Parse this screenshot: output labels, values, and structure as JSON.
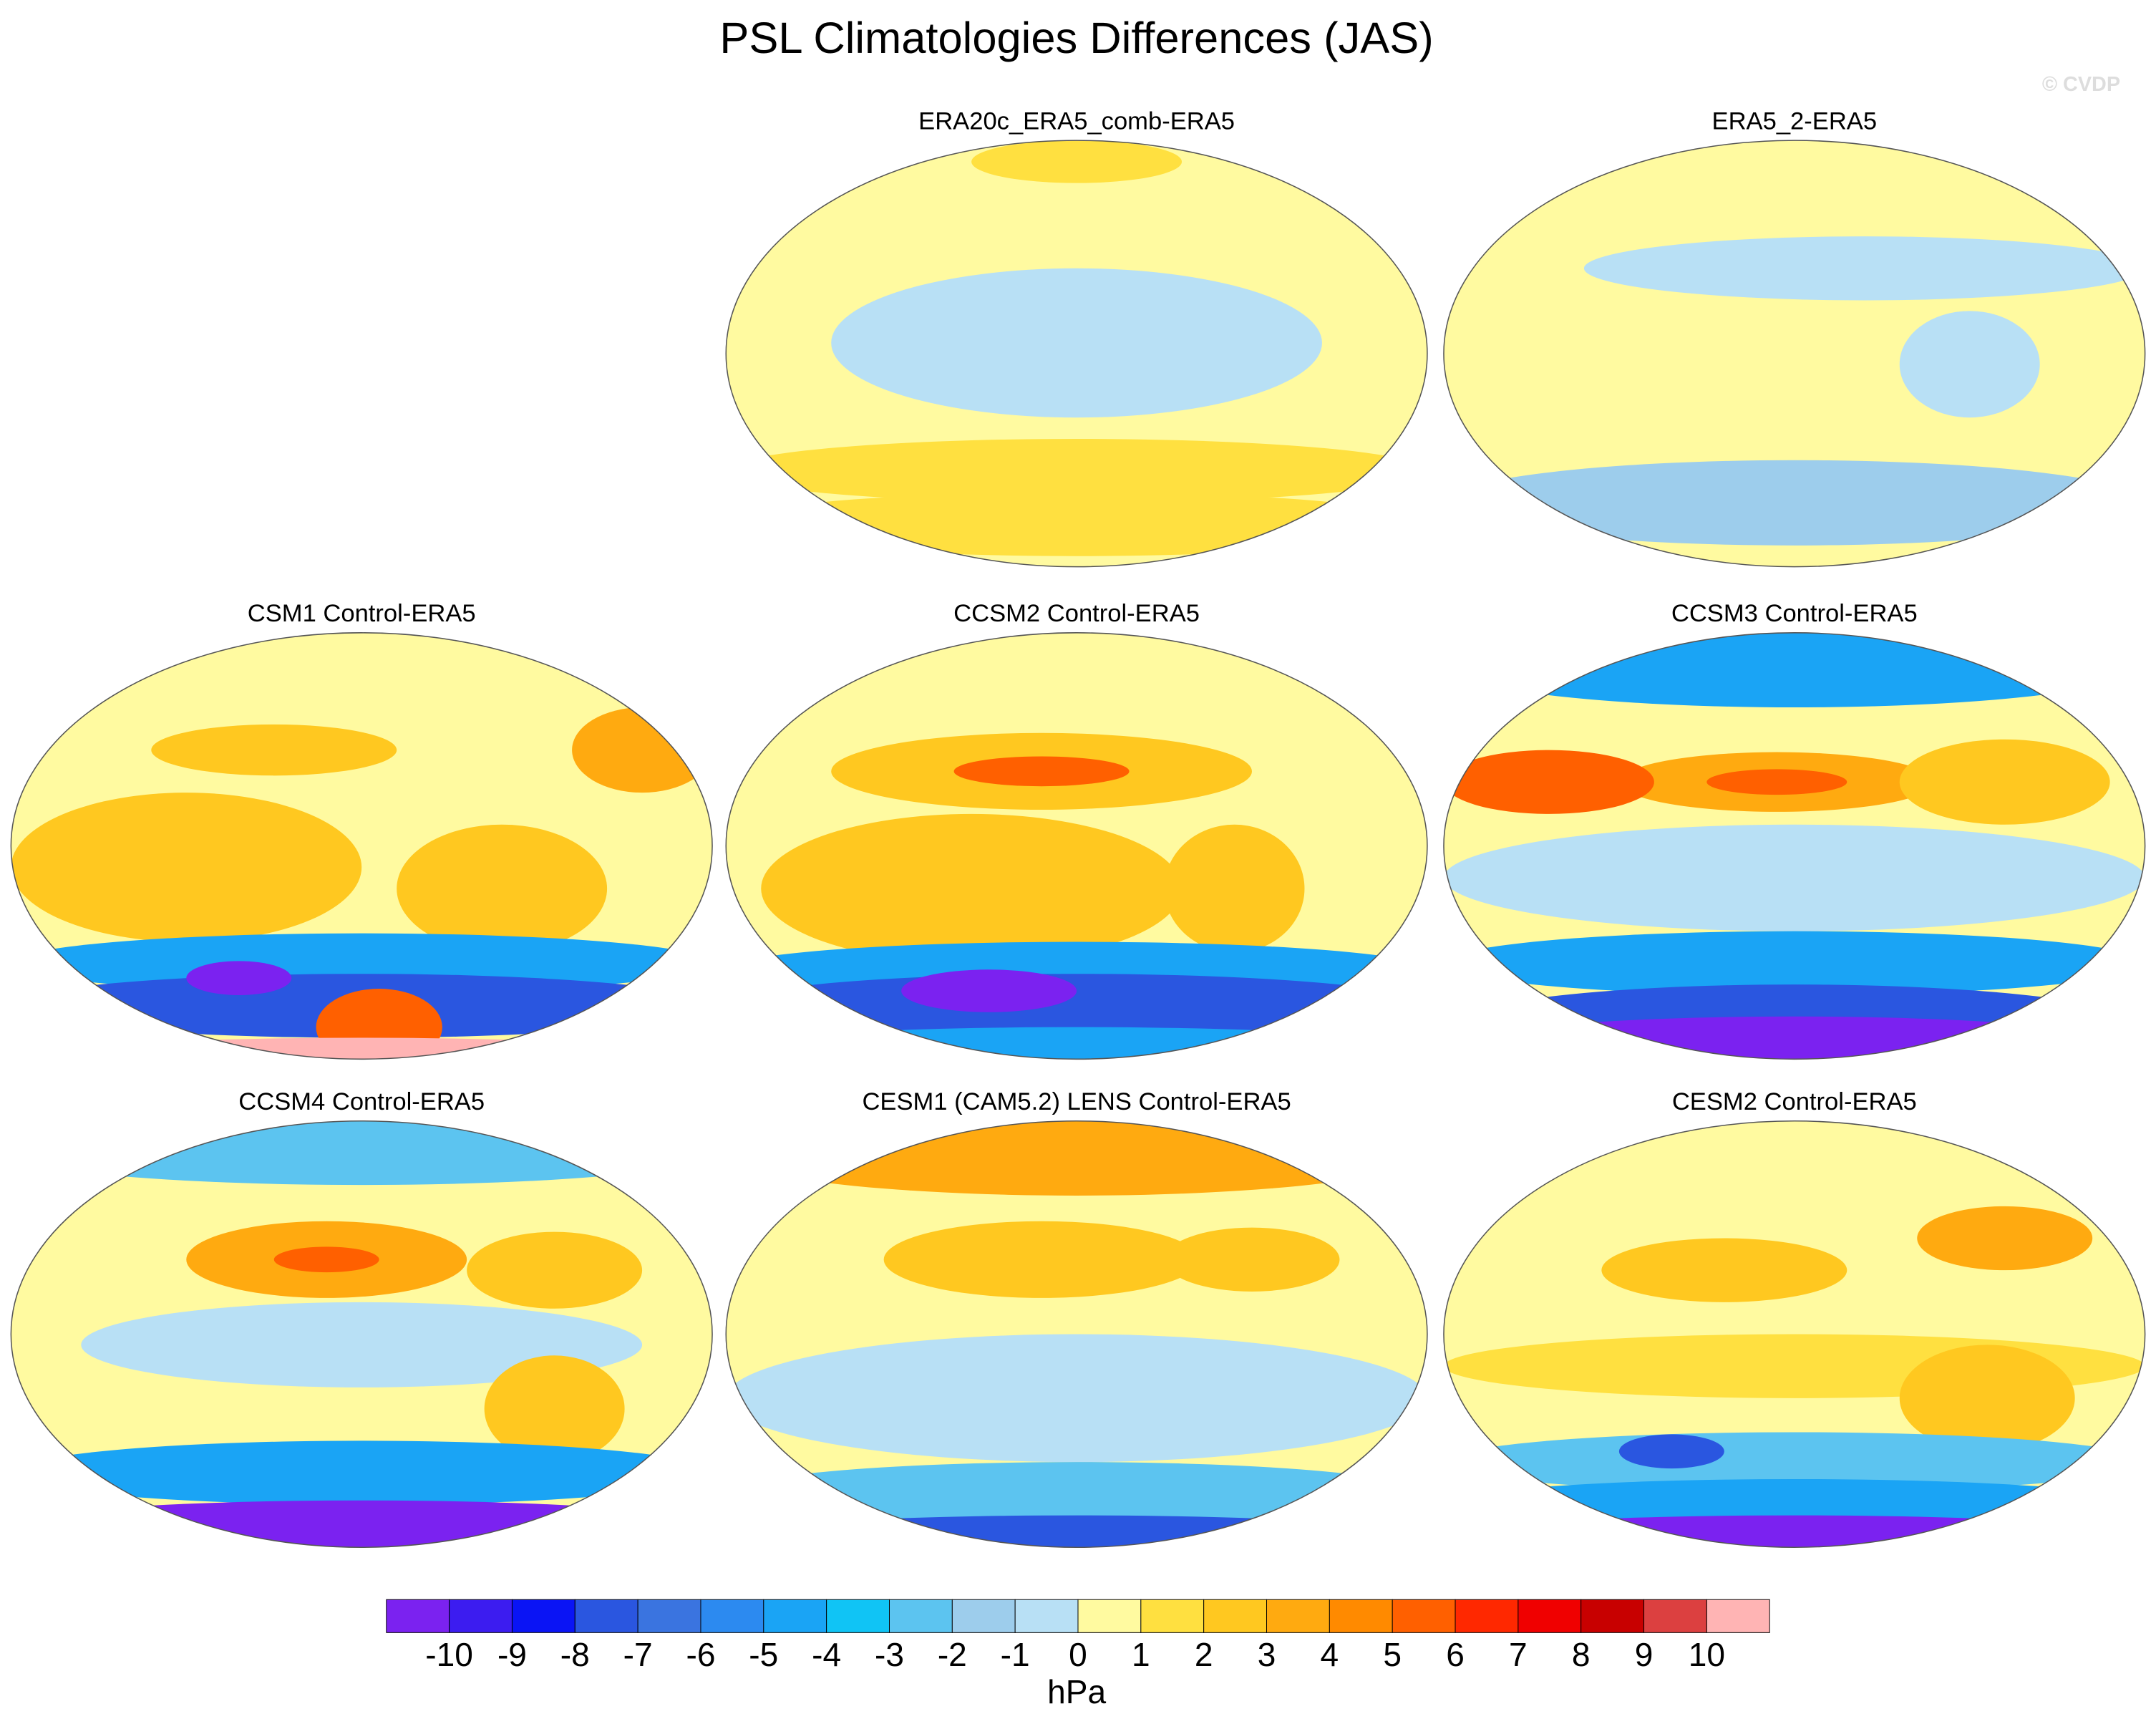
{
  "title": "PSL Climatologies Differences (JAS)",
  "watermark": "© CVDP",
  "panels": [
    {
      "title": "ERA20c_ERA5_comb-ERA5"
    },
    {
      "title": "ERA5_2-ERA5"
    },
    {
      "title": "CSM1 Control-ERA5"
    },
    {
      "title": "CCSM2 Control-ERA5"
    },
    {
      "title": "CCSM3 Control-ERA5"
    },
    {
      "title": "CCSM4 Control-ERA5"
    },
    {
      "title": "CESM1 (CAM5.2) LENS Control-ERA5"
    },
    {
      "title": "CESM2 Control-ERA5"
    }
  ],
  "colorbar": {
    "colors": [
      "#7b22f0",
      "#3c1cf0",
      "#0a14f5",
      "#2a56e0",
      "#3a74e0",
      "#2c8af0",
      "#1aa4f5",
      "#10c4f5",
      "#5cc4f0",
      "#9dcdec",
      "#b8e0f5",
      "#fffaa0",
      "#ffe040",
      "#ffc820",
      "#ffaa10",
      "#ff8a00",
      "#ff6000",
      "#ff2800",
      "#f00000",
      "#c80000",
      "#dc4040",
      "#ffb4b4"
    ],
    "labels": [
      -10,
      -9,
      -8,
      -7,
      -6,
      -5,
      -4,
      -3,
      -2,
      -1,
      0,
      1,
      2,
      3,
      4,
      5,
      6,
      7,
      8,
      9,
      10
    ],
    "unit": "hPa"
  }
}
